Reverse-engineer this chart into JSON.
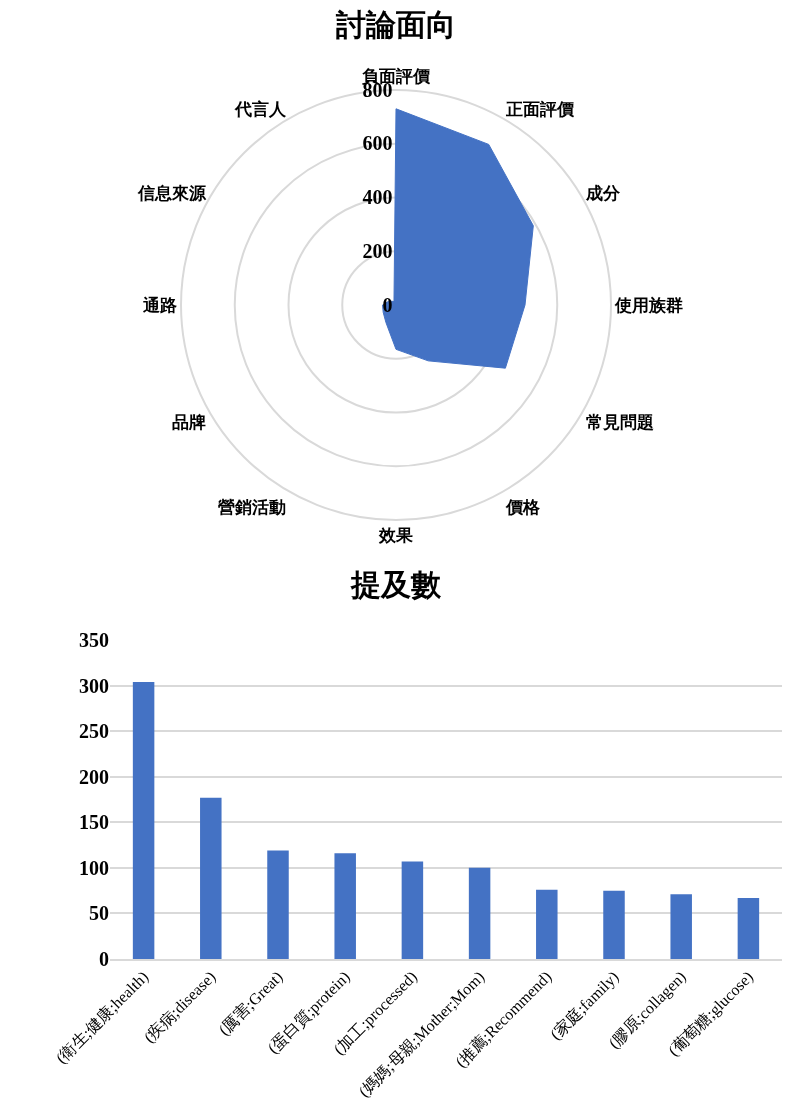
{
  "chart_data": [
    {
      "type": "radar",
      "title": "討論面向",
      "categories": [
        "負面評價",
        "正面評價",
        "成分",
        "使用族群",
        "常見問題",
        "價格",
        "效果",
        "營銷活動",
        "品牌",
        "通路",
        "信息來源",
        "代言人"
      ],
      "series": [
        {
          "color": "#4472c4",
          "values": [
            730,
            690,
            590,
            480,
            470,
            240,
            165,
            75,
            55,
            50,
            30,
            15
          ]
        }
      ],
      "ylim": [
        0,
        800
      ],
      "yticks": [
        0,
        200,
        400,
        600,
        800
      ],
      "grid": true
    },
    {
      "type": "bar",
      "title": "提及數",
      "categories": [
        "(衛生;健康;health)",
        "(疾病;disease)",
        "(厲害;Great)",
        "(蛋白質;protein)",
        "(加工;processed)",
        "(媽媽;母親;Mother;Mom)",
        "(推薦;Recommend)",
        "(家庭;family)",
        "(膠原;collagen)",
        "(葡萄糖;glucose)"
      ],
      "values": [
        304,
        177,
        119,
        116,
        107,
        100,
        76,
        75,
        71,
        67
      ],
      "color": "#4472c4",
      "ylim": [
        0,
        350
      ],
      "yticks": [
        0,
        50,
        100,
        150,
        200,
        250,
        300,
        350
      ],
      "grid": "y"
    }
  ]
}
